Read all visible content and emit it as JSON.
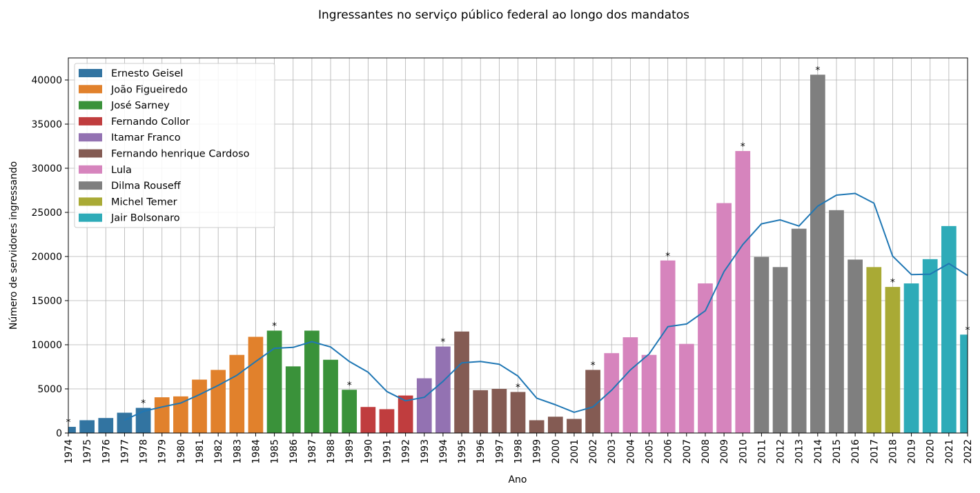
{
  "chart_data": {
    "type": "bar",
    "title": "Ingressantes no serviço público federal ao longo dos mandatos",
    "xlabel": "Ano",
    "ylabel": "Número de servidores ingressando",
    "ylim": [
      0,
      42500
    ],
    "yticks": [
      0,
      5000,
      10000,
      15000,
      20000,
      25000,
      30000,
      35000,
      40000
    ],
    "grid": true,
    "legend_position": "top-left",
    "categories": [
      "1974",
      "1975",
      "1976",
      "1977",
      "1978",
      "1979",
      "1980",
      "1981",
      "1982",
      "1983",
      "1984",
      "1985",
      "1986",
      "1987",
      "1988",
      "1989",
      "1990",
      "1991",
      "1992",
      "1993",
      "1994",
      "1995",
      "1996",
      "1997",
      "1998",
      "1999",
      "2000",
      "2001",
      "2002",
      "2003",
      "2004",
      "2005",
      "2006",
      "2007",
      "2008",
      "2009",
      "2010",
      "2011",
      "2012",
      "2013",
      "2014",
      "2015",
      "2016",
      "2017",
      "2018",
      "2019",
      "2020",
      "2021",
      "2022"
    ],
    "values": [
      700,
      1450,
      1700,
      2300,
      2850,
      4050,
      4150,
      6050,
      7150,
      8850,
      10900,
      11600,
      7550,
      11600,
      8300,
      4900,
      2950,
      2700,
      4250,
      6200,
      9800,
      11500,
      4850,
      5000,
      4650,
      1450,
      1850,
      1600,
      7150,
      9050,
      10850,
      8850,
      19550,
      10100,
      16950,
      26050,
      31950,
      19950,
      18800,
      23150,
      40600,
      25250,
      19650,
      18800,
      16550,
      16950,
      19700,
      23450,
      11150
    ],
    "presidents": [
      {
        "name": "Ernesto Geisel",
        "color": "#3274a1"
      },
      {
        "name": "João Figueiredo",
        "color": "#e1812c"
      },
      {
        "name": "José Sarney",
        "color": "#3a923a"
      },
      {
        "name": "Fernando Collor",
        "color": "#c03d3e"
      },
      {
        "name": "Itamar Franco",
        "color": "#9372b2"
      },
      {
        "name": "Fernando henrique Cardoso",
        "color": "#845b53"
      },
      {
        "name": "Lula",
        "color": "#d684bd"
      },
      {
        "name": "Dilma Rouseff",
        "color": "#7f7f7f"
      },
      {
        "name": "Michel Temer",
        "color": "#a9aa35"
      },
      {
        "name": "Jair Bolsonaro",
        "color": "#2eabb8"
      }
    ],
    "bar_president_index": [
      0,
      0,
      0,
      0,
      0,
      1,
      1,
      1,
      1,
      1,
      1,
      2,
      2,
      2,
      2,
      2,
      3,
      3,
      3,
      4,
      4,
      5,
      5,
      5,
      5,
      5,
      5,
      5,
      5,
      6,
      6,
      6,
      6,
      6,
      6,
      6,
      6,
      7,
      7,
      7,
      7,
      7,
      7,
      8,
      8,
      9,
      9,
      9,
      9
    ],
    "star_marker": "*",
    "starred_years": [
      "1974",
      "1978",
      "1985",
      "1989",
      "1994",
      "1998",
      "2002",
      "2006",
      "2010",
      "2014",
      "2018",
      "2022"
    ],
    "trend_line": {
      "color": "#1f77b4",
      "x": [
        "1977",
        "1978",
        "1979",
        "1980",
        "1981",
        "1982",
        "1983",
        "1984",
        "1985",
        "1986",
        "1987",
        "1988",
        "1989",
        "1990",
        "1991",
        "1992",
        "1993",
        "1994",
        "1995",
        "1996",
        "1997",
        "1998",
        "1999",
        "2000",
        "2001",
        "2002",
        "2003",
        "2004",
        "2005",
        "2006",
        "2007",
        "2008",
        "2009",
        "2010",
        "2011",
        "2012",
        "2013",
        "2014",
        "2015",
        "2016",
        "2017",
        "2018",
        "2019",
        "2020",
        "2021",
        "2022"
      ],
      "y": [
        1450,
        2450,
        2950,
        3400,
        4350,
        5400,
        6550,
        8100,
        9600,
        9700,
        10350,
        9750,
        8100,
        6900,
        4700,
        3650,
        4050,
        5850,
        7950,
        8100,
        7800,
        6450,
        3950,
        3200,
        2350,
        2950,
        4850,
        7150,
        8950,
        12050,
        12350,
        13850,
        18300,
        21350,
        23700,
        24150,
        23450,
        25700,
        26950,
        27150,
        26050,
        20050,
        17950,
        18000,
        19200,
        17850
      ]
    }
  }
}
